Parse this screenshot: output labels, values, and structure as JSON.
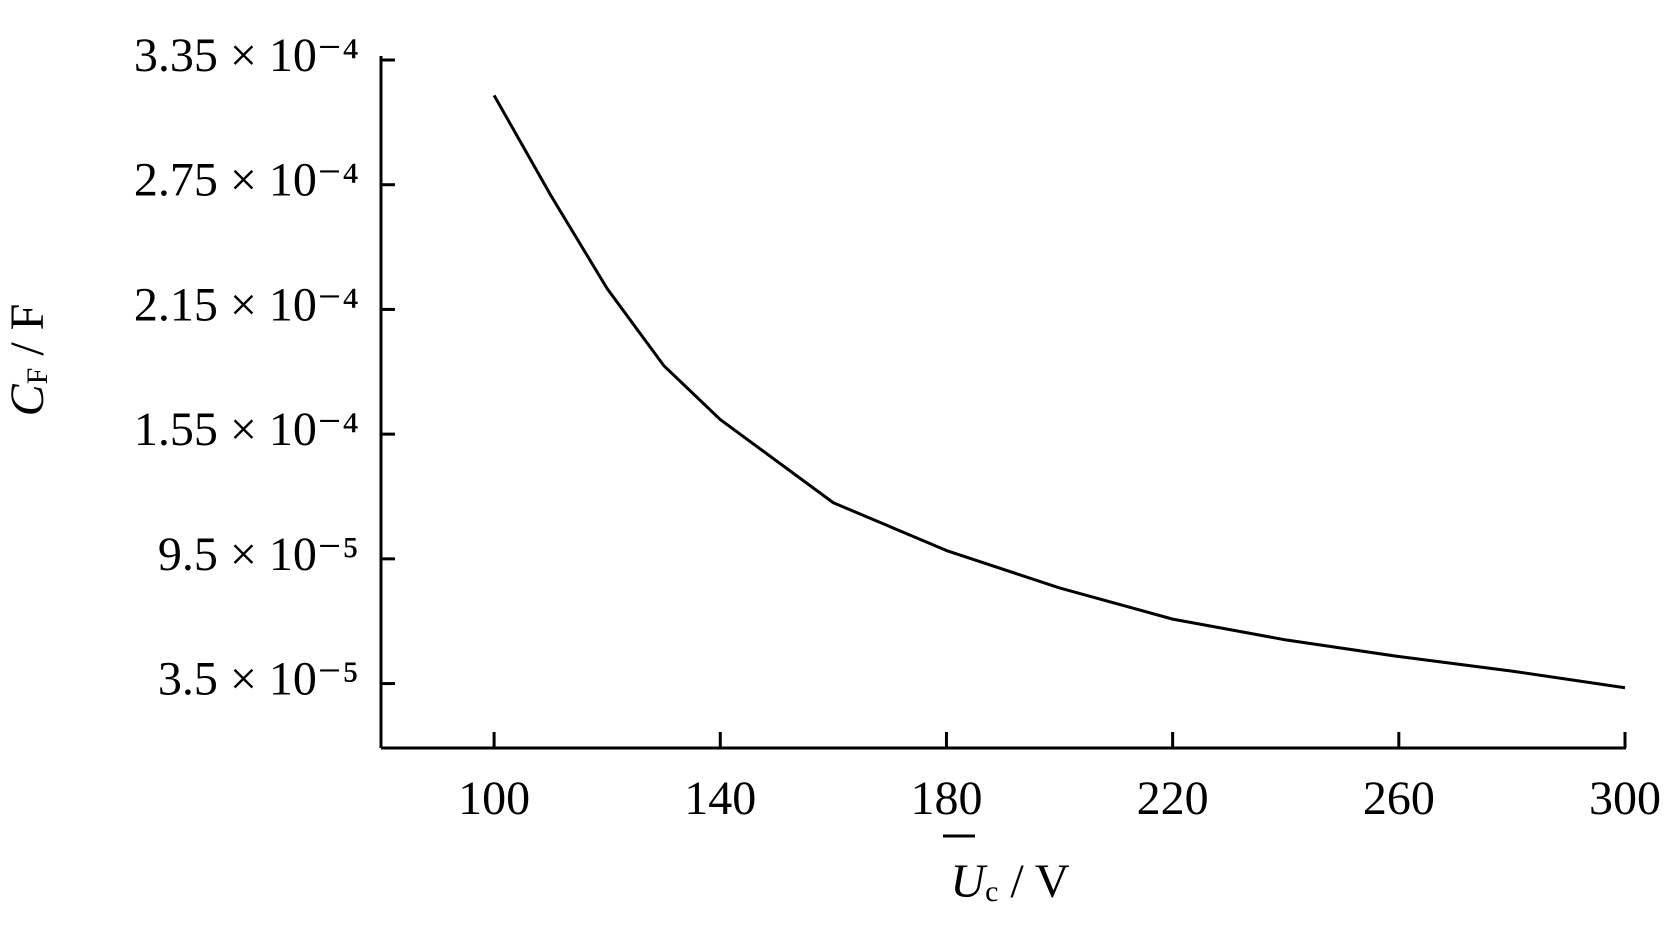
{
  "chart_data": {
    "type": "line",
    "xlabel": {
      "symbol": "U",
      "subscript": "c",
      "unit": "/ V"
    },
    "ylabel": {
      "symbol": "C",
      "subscript": "F",
      "unit": "/ F"
    },
    "x": [
      100,
      110,
      120,
      130,
      140,
      160,
      180,
      200,
      220,
      240,
      260,
      280,
      300
    ],
    "series": [
      {
        "color": "#000000",
        "values": [
          0.000318,
          0.00027,
          0.000225,
          0.000188,
          0.000162,
          0.000122,
          9.9e-05,
          8.1e-05,
          6.6e-05,
          5.6e-05,
          4.8e-05,
          4.1e-05,
          3.3e-05
        ]
      }
    ],
    "xlim": [
      80,
      300
    ],
    "xticks": [
      100,
      140,
      180,
      220,
      260,
      300
    ],
    "ylim": [
      4e-06,
      0.000335
    ],
    "yticks": [
      {
        "value": 3.5e-05,
        "label": "3.5 × 10⁻⁵"
      },
      {
        "value": 9.5e-05,
        "label": "9.5 × 10⁻⁵"
      },
      {
        "value": 0.000155,
        "label": "1.55 × 10⁻⁴"
      },
      {
        "value": 0.000215,
        "label": "2.15 × 10⁻⁴"
      },
      {
        "value": 0.000275,
        "label": "2.75 × 10⁻⁴"
      },
      {
        "value": 0.000335,
        "label": "3.35 × 10⁻⁴"
      }
    ],
    "grid": false
  }
}
